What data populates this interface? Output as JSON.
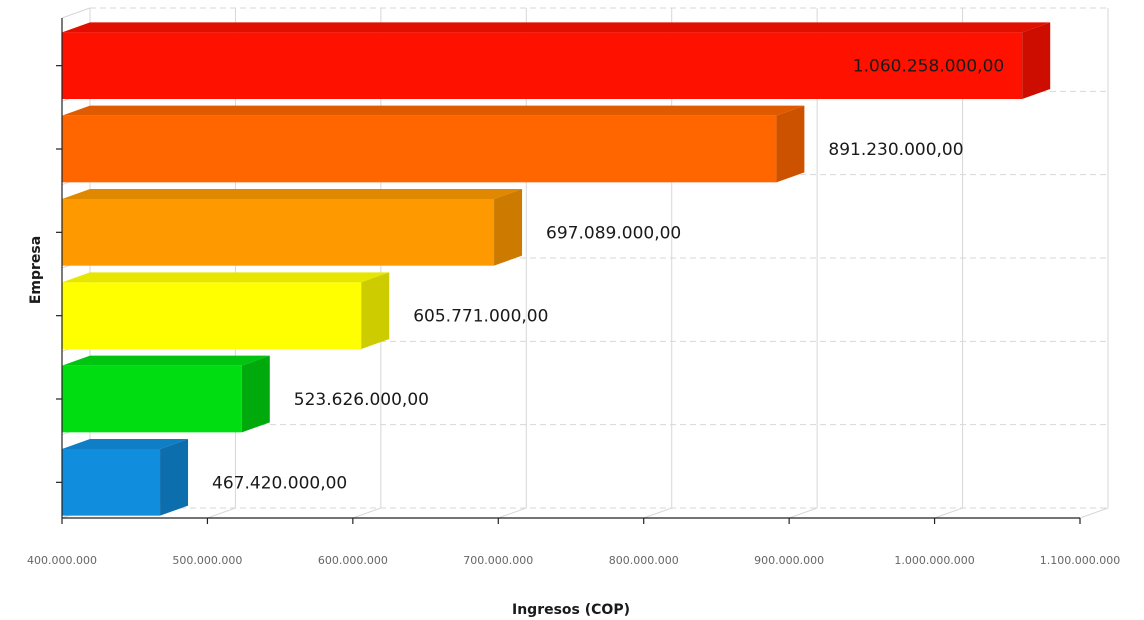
{
  "chart_data": {
    "type": "bar",
    "orientation": "horizontal",
    "three_d": true,
    "xlabel": "Ingresos (COP)",
    "ylabel": "Empresa",
    "xlim": [
      400000000,
      1100000000
    ],
    "x_ticks": [
      400000000,
      500000000,
      600000000,
      700000000,
      800000000,
      900000000,
      1000000000,
      1100000000
    ],
    "x_tick_labels": [
      "400.000.000",
      "500.000.000",
      "600.000.000",
      "700.000.000",
      "800.000.000",
      "900.000.000",
      "1.000.000.000",
      "1.100.000.000"
    ],
    "grid": true,
    "bars": [
      {
        "value": 1060258000,
        "label": "1.060.258.000,00",
        "color": "#ff1100",
        "side_color": "#cc0d00",
        "top_color": "#e00f00"
      },
      {
        "value": 891230000,
        "label": "891.230.000,00",
        "color": "#ff6600",
        "side_color": "#cc5200",
        "top_color": "#e05a00"
      },
      {
        "value": 697089000,
        "label": "697.089.000,00",
        "color": "#ff9900",
        "side_color": "#cc7a00",
        "top_color": "#e08800"
      },
      {
        "value": 605771000,
        "label": "605.771.000,00",
        "color": "#ffff00",
        "side_color": "#cccc00",
        "top_color": "#e6e600"
      },
      {
        "value": 523626000,
        "label": "523.626.000,00",
        "color": "#00dd11",
        "side_color": "#00aa0d",
        "top_color": "#00c40f"
      },
      {
        "value": 467420000,
        "label": "467.420.000,00",
        "color": "#118ddd",
        "side_color": "#0d6eae",
        "top_color": "#0f7ec6"
      }
    ]
  }
}
